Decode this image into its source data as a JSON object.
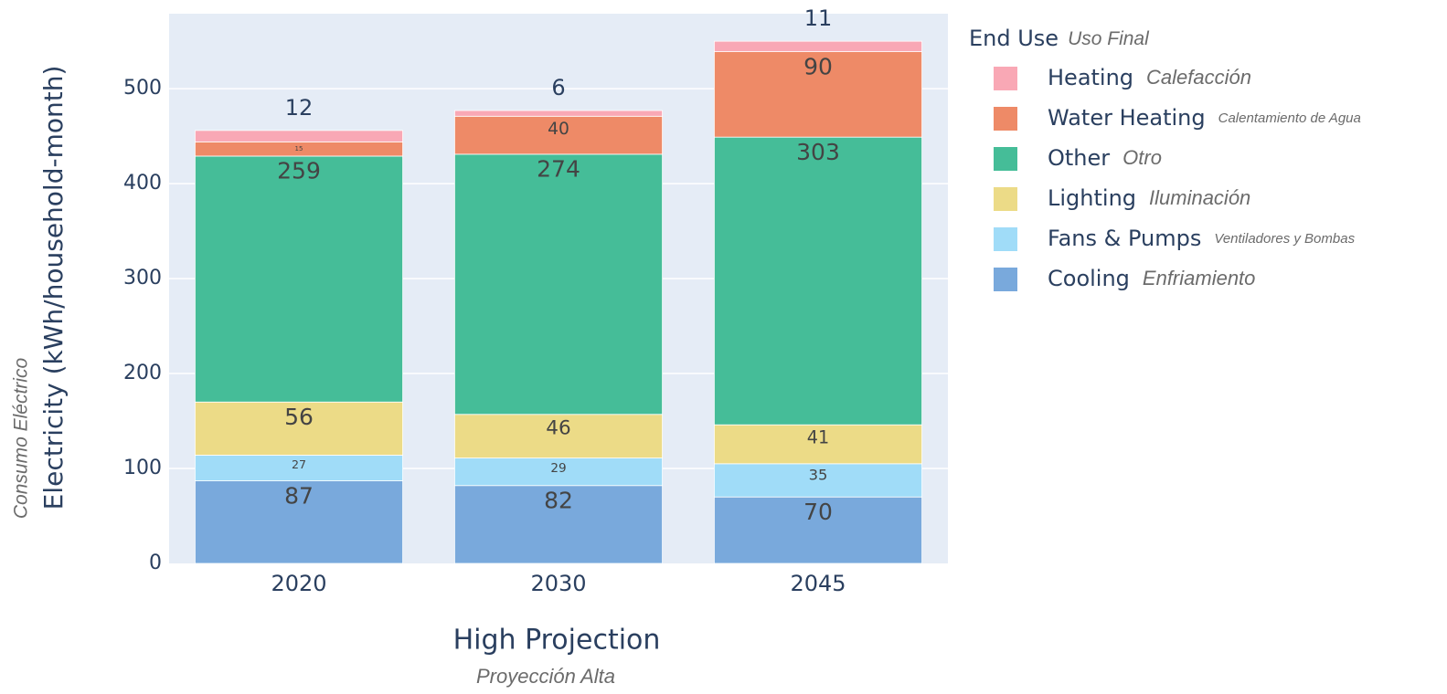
{
  "chart_data": {
    "type": "bar",
    "stacked": true,
    "xlabel": "High Projection",
    "xlabel_sub": "Proyección Alta",
    "ylabel": "Electricity (kWh/household-month)",
    "ylabel_sub": "Consumo Eléctrico",
    "legend_title": "End Use",
    "legend_title_sub": "Uso Final",
    "legend_position": "right",
    "categories": [
      "2020",
      "2030",
      "2045"
    ],
    "ylim": [
      0,
      579
    ],
    "yticks": [
      0,
      100,
      200,
      300,
      400,
      500
    ],
    "grid": true,
    "series": [
      {
        "name": "Cooling",
        "name_sub": "Enfriamiento",
        "color": "#79a9dc",
        "values": [
          87,
          82,
          70
        ]
      },
      {
        "name": "Fans & Pumps",
        "name_sub": "Ventiladores y Bombas",
        "color": "#a0dcf8",
        "values": [
          27,
          29,
          35
        ]
      },
      {
        "name": "Lighting",
        "name_sub": "Iluminación",
        "color": "#ecdb87",
        "values": [
          56,
          46,
          41
        ]
      },
      {
        "name": "Other",
        "name_sub": "Otro",
        "color": "#45bd98",
        "values": [
          259,
          274,
          303
        ]
      },
      {
        "name": "Water Heating",
        "name_sub": "Calentamiento de Agua",
        "color": "#ee8a67",
        "values": [
          15,
          40,
          90
        ]
      },
      {
        "name": "Heating",
        "name_sub": "Calefacción",
        "color": "#f9a8b5",
        "values": [
          12,
          6,
          11
        ]
      }
    ]
  }
}
